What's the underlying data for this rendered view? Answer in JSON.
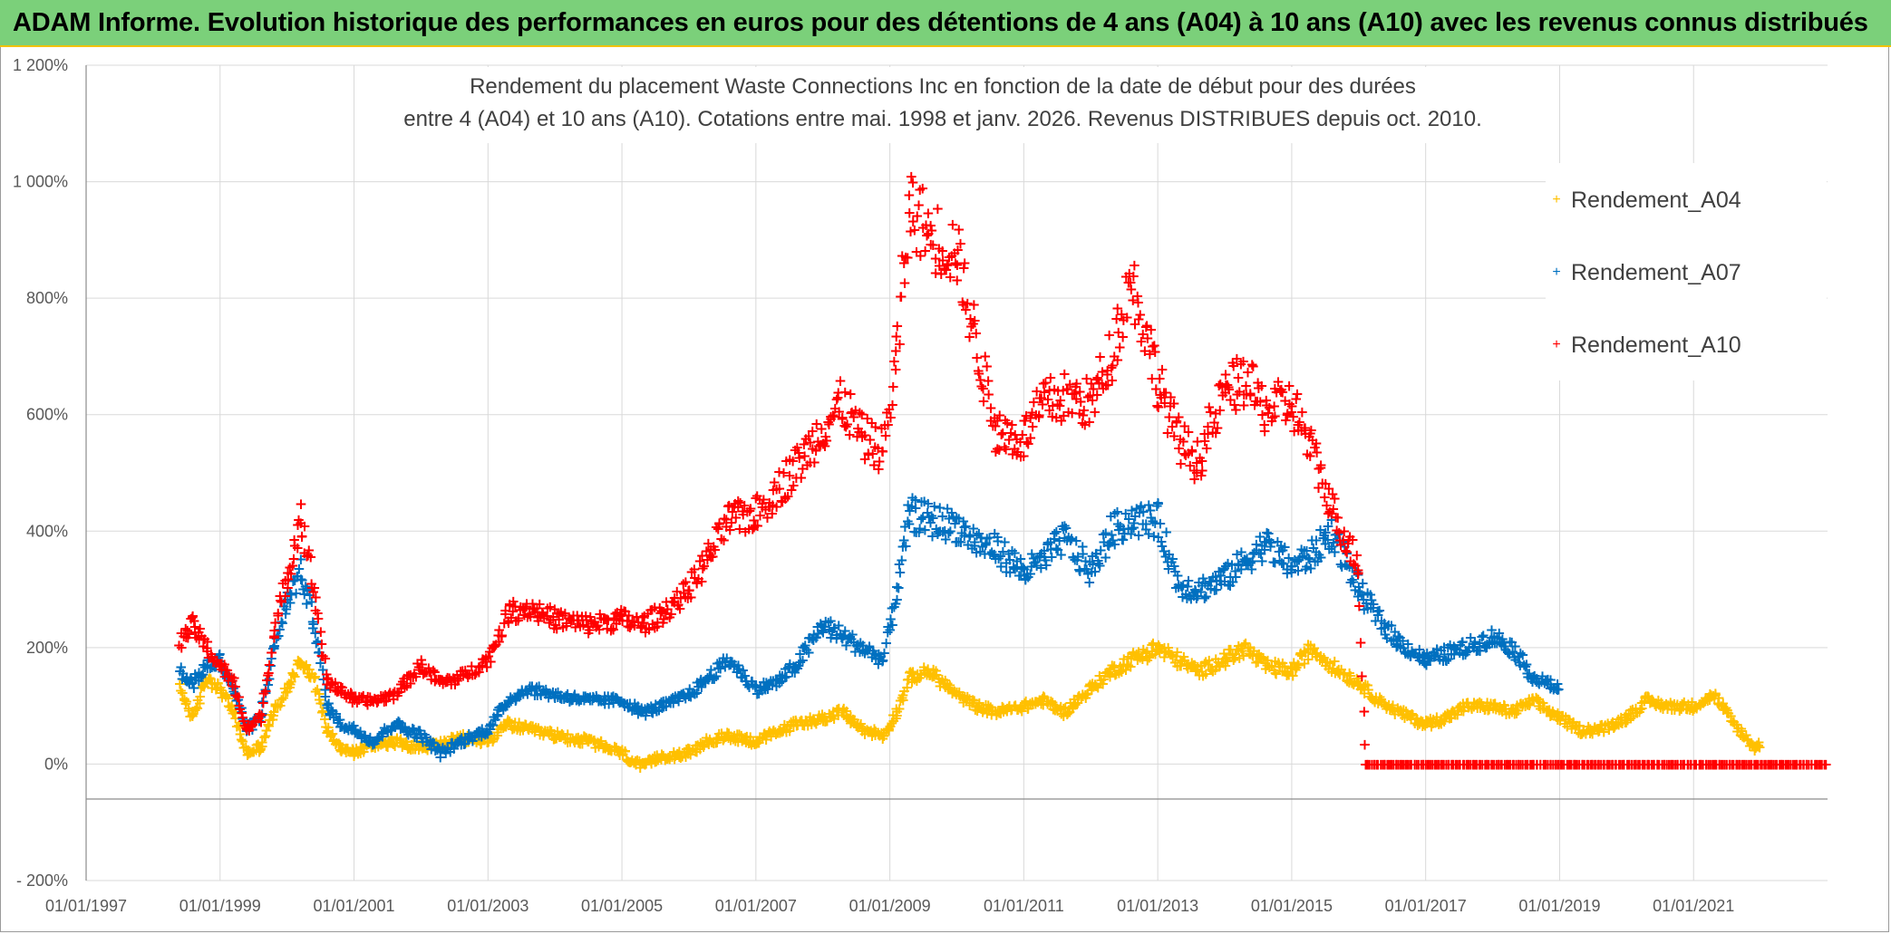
{
  "banner": {
    "title": "ADAM Informe. Evolution historique des performances en euros pour des détentions de 4 ans (A04) à 10 ans (A10) avec les revenus connus distribués"
  },
  "chart_data": {
    "type": "scatter",
    "title_line1": "Rendement du placement Waste Connections Inc en fonction de la date de début pour des durées",
    "title_line2": "entre 4 (A04) et 10 ans (A10). Cotations entre mai. 1998 et janv. 2026. Revenus DISTRIBUES depuis oct. 2010.",
    "x_min": 1997.0,
    "x_max": 2023.0,
    "ylim": [
      -200,
      1200
    ],
    "x_tick_years": [
      1997,
      1999,
      2001,
      2003,
      2005,
      2007,
      2009,
      2011,
      2013,
      2015,
      2017,
      2019,
      2021
    ],
    "x_tick_labels": [
      "01/01/1997",
      "01/01/1999",
      "01/01/2001",
      "01/01/2003",
      "01/01/2005",
      "01/01/2007",
      "01/01/2009",
      "01/01/2011",
      "01/01/2013",
      "01/01/2015",
      "01/01/2017",
      "01/01/2019",
      "01/01/2021"
    ],
    "y_ticks": [
      -200,
      0,
      200,
      400,
      600,
      800,
      1000,
      1200
    ],
    "y_tick_labels": [
      "- 200%",
      "0%",
      "200%",
      "400%",
      "600%",
      "800%",
      "1 000%",
      "1 200%"
    ],
    "grid": true,
    "legend_position": "top-right",
    "series": [
      {
        "name": "Rendement_A04",
        "color": "#ffc000",
        "points": [
          [
            1998.4,
            130
          ],
          [
            1998.6,
            80
          ],
          [
            1998.8,
            150
          ],
          [
            1999.0,
            130
          ],
          [
            1999.2,
            90
          ],
          [
            1999.4,
            20
          ],
          [
            1999.6,
            30
          ],
          [
            1999.8,
            90
          ],
          [
            2000.0,
            130
          ],
          [
            2000.2,
            180
          ],
          [
            2000.4,
            150
          ],
          [
            2000.6,
            60
          ],
          [
            2000.8,
            30
          ],
          [
            2001.0,
            20
          ],
          [
            2001.3,
            35
          ],
          [
            2001.6,
            40
          ],
          [
            2002.0,
            30
          ],
          [
            2002.3,
            35
          ],
          [
            2002.6,
            45
          ],
          [
            2003.0,
            40
          ],
          [
            2003.3,
            70
          ],
          [
            2003.6,
            60
          ],
          [
            2004.0,
            50
          ],
          [
            2004.5,
            40
          ],
          [
            2005.0,
            20
          ],
          [
            2005.3,
            -5
          ],
          [
            2005.6,
            15
          ],
          [
            2006.0,
            20
          ],
          [
            2006.3,
            40
          ],
          [
            2006.6,
            50
          ],
          [
            2007.0,
            40
          ],
          [
            2007.3,
            55
          ],
          [
            2007.6,
            70
          ],
          [
            2008.0,
            80
          ],
          [
            2008.3,
            90
          ],
          [
            2008.6,
            60
          ],
          [
            2008.9,
            50
          ],
          [
            2009.1,
            90
          ],
          [
            2009.3,
            150
          ],
          [
            2009.6,
            160
          ],
          [
            2010.0,
            120
          ],
          [
            2010.3,
            100
          ],
          [
            2010.6,
            90
          ],
          [
            2011.0,
            100
          ],
          [
            2011.3,
            110
          ],
          [
            2011.6,
            90
          ],
          [
            2012.0,
            130
          ],
          [
            2012.3,
            160
          ],
          [
            2012.6,
            180
          ],
          [
            2013.0,
            200
          ],
          [
            2013.3,
            180
          ],
          [
            2013.6,
            160
          ],
          [
            2014.0,
            180
          ],
          [
            2014.3,
            200
          ],
          [
            2014.6,
            170
          ],
          [
            2015.0,
            160
          ],
          [
            2015.3,
            200
          ],
          [
            2015.6,
            170
          ],
          [
            2016.0,
            140
          ],
          [
            2016.3,
            110
          ],
          [
            2016.6,
            90
          ],
          [
            2017.0,
            70
          ],
          [
            2017.3,
            80
          ],
          [
            2017.6,
            100
          ],
          [
            2018.0,
            100
          ],
          [
            2018.3,
            90
          ],
          [
            2018.6,
            110
          ],
          [
            2019.0,
            80
          ],
          [
            2019.3,
            60
          ],
          [
            2019.6,
            60
          ],
          [
            2020.0,
            80
          ],
          [
            2020.3,
            110
          ],
          [
            2020.6,
            100
          ],
          [
            2021.0,
            100
          ],
          [
            2021.3,
            120
          ],
          [
            2021.6,
            70
          ],
          [
            2021.9,
            30
          ],
          [
            2022.0,
            35
          ]
        ]
      },
      {
        "name": "Rendement_A07",
        "color": "#0070c0",
        "points": [
          [
            1998.4,
            160
          ],
          [
            1998.6,
            140
          ],
          [
            1998.8,
            170
          ],
          [
            1999.0,
            180
          ],
          [
            1999.2,
            130
          ],
          [
            1999.4,
            60
          ],
          [
            1999.6,
            80
          ],
          [
            1999.8,
            200
          ],
          [
            2000.0,
            280
          ],
          [
            2000.2,
            330
          ],
          [
            2000.4,
            250
          ],
          [
            2000.6,
            100
          ],
          [
            2000.8,
            70
          ],
          [
            2001.0,
            60
          ],
          [
            2001.3,
            40
          ],
          [
            2001.6,
            70
          ],
          [
            2002.0,
            50
          ],
          [
            2002.3,
            20
          ],
          [
            2002.6,
            40
          ],
          [
            2003.0,
            60
          ],
          [
            2003.3,
            110
          ],
          [
            2003.6,
            130
          ],
          [
            2004.0,
            120
          ],
          [
            2004.5,
            110
          ],
          [
            2005.0,
            110
          ],
          [
            2005.3,
            90
          ],
          [
            2005.6,
            100
          ],
          [
            2006.0,
            120
          ],
          [
            2006.3,
            150
          ],
          [
            2006.6,
            180
          ],
          [
            2007.0,
            130
          ],
          [
            2007.3,
            140
          ],
          [
            2007.6,
            170
          ],
          [
            2008.0,
            240
          ],
          [
            2008.3,
            220
          ],
          [
            2008.6,
            200
          ],
          [
            2008.9,
            180
          ],
          [
            2009.1,
            300
          ],
          [
            2009.3,
            430
          ],
          [
            2009.6,
            420
          ],
          [
            2010.0,
            410
          ],
          [
            2010.3,
            380
          ],
          [
            2010.6,
            370
          ],
          [
            2011.0,
            330
          ],
          [
            2011.3,
            350
          ],
          [
            2011.6,
            390
          ],
          [
            2012.0,
            330
          ],
          [
            2012.3,
            400
          ],
          [
            2012.6,
            420
          ],
          [
            2013.0,
            420
          ],
          [
            2013.3,
            310
          ],
          [
            2013.6,
            300
          ],
          [
            2014.0,
            320
          ],
          [
            2014.3,
            350
          ],
          [
            2014.6,
            380
          ],
          [
            2015.0,
            340
          ],
          [
            2015.3,
            360
          ],
          [
            2015.6,
            400
          ],
          [
            2016.0,
            300
          ],
          [
            2016.3,
            250
          ],
          [
            2016.6,
            210
          ],
          [
            2017.0,
            180
          ],
          [
            2017.3,
            190
          ],
          [
            2017.6,
            200
          ],
          [
            2018.0,
            220
          ],
          [
            2018.3,
            200
          ],
          [
            2018.6,
            150
          ],
          [
            2019.0,
            130
          ]
        ]
      },
      {
        "name": "Rendement_A10",
        "color": "#ff0000",
        "points": [
          [
            1998.4,
            210
          ],
          [
            1998.6,
            240
          ],
          [
            1998.8,
            200
          ],
          [
            1999.0,
            170
          ],
          [
            1999.2,
            140
          ],
          [
            1999.4,
            60
          ],
          [
            1999.6,
            80
          ],
          [
            1999.8,
            220
          ],
          [
            2000.0,
            320
          ],
          [
            2000.2,
            430
          ],
          [
            2000.4,
            300
          ],
          [
            2000.6,
            140
          ],
          [
            2000.8,
            130
          ],
          [
            2001.0,
            110
          ],
          [
            2001.3,
            110
          ],
          [
            2001.6,
            120
          ],
          [
            2002.0,
            170
          ],
          [
            2002.3,
            140
          ],
          [
            2002.6,
            150
          ],
          [
            2003.0,
            180
          ],
          [
            2003.3,
            260
          ],
          [
            2003.6,
            270
          ],
          [
            2004.0,
            250
          ],
          [
            2004.5,
            240
          ],
          [
            2005.0,
            250
          ],
          [
            2005.3,
            240
          ],
          [
            2005.6,
            260
          ],
          [
            2006.0,
            300
          ],
          [
            2006.3,
            360
          ],
          [
            2006.6,
            420
          ],
          [
            2007.0,
            430
          ],
          [
            2007.3,
            470
          ],
          [
            2007.6,
            510
          ],
          [
            2008.0,
            580
          ],
          [
            2008.3,
            620
          ],
          [
            2008.6,
            560
          ],
          [
            2008.9,
            540
          ],
          [
            2009.1,
            700
          ],
          [
            2009.3,
            960
          ],
          [
            2009.6,
            910
          ],
          [
            2010.0,
            880
          ],
          [
            2010.3,
            720
          ],
          [
            2010.6,
            570
          ],
          [
            2011.0,
            560
          ],
          [
            2011.3,
            620
          ],
          [
            2011.6,
            630
          ],
          [
            2012.0,
            620
          ],
          [
            2012.3,
            700
          ],
          [
            2012.6,
            840
          ],
          [
            2013.0,
            660
          ],
          [
            2013.3,
            560
          ],
          [
            2013.6,
            520
          ],
          [
            2014.0,
            640
          ],
          [
            2014.3,
            660
          ],
          [
            2014.6,
            610
          ],
          [
            2015.0,
            620
          ],
          [
            2015.3,
            540
          ],
          [
            2015.6,
            440
          ],
          [
            2016.0,
            340
          ],
          [
            2016.1,
            0
          ],
          [
            2017.0,
            0
          ],
          [
            2018.0,
            0
          ],
          [
            2019.0,
            0
          ],
          [
            2020.0,
            0
          ],
          [
            2021.0,
            0
          ],
          [
            2022.0,
            0
          ],
          [
            2023.0,
            0
          ]
        ]
      }
    ]
  }
}
